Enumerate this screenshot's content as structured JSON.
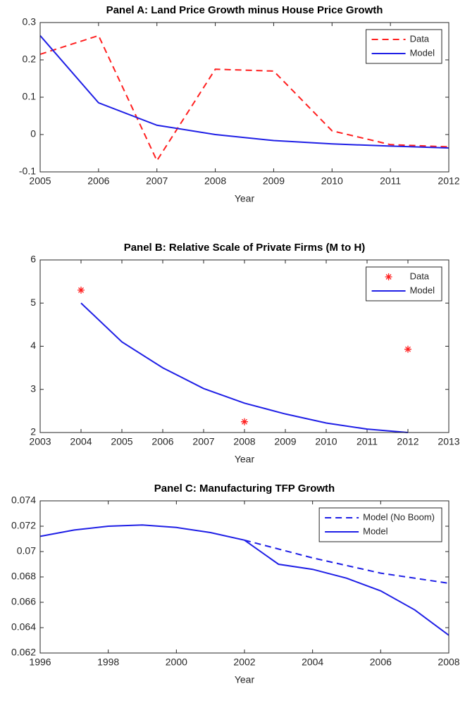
{
  "chart_data": [
    {
      "type": "line",
      "title": "Panel A: Land Price Growth minus House Price Growth",
      "xlabel": "Year",
      "xlim": [
        2005,
        2012
      ],
      "xticks": [
        2005,
        2006,
        2007,
        2008,
        2009,
        2010,
        2011,
        2012
      ],
      "ylim": [
        -0.1,
        0.3
      ],
      "yticks": [
        -0.1,
        0,
        0.1,
        0.2,
        0.3
      ],
      "legend": "upper right",
      "series": [
        {
          "name": "Data",
          "color": "#ff1f1f",
          "linestyle": "dashed",
          "x": [
            2005,
            2006,
            2007,
            2008,
            2009,
            2010,
            2011,
            2012
          ],
          "values": [
            0.215,
            0.265,
            -0.07,
            0.175,
            0.17,
            0.01,
            -0.027,
            -0.033
          ]
        },
        {
          "name": "Model",
          "color": "#1f1fe6",
          "linestyle": "solid",
          "x": [
            2005,
            2006,
            2007,
            2008,
            2009,
            2010,
            2011,
            2012
          ],
          "values": [
            0.265,
            0.085,
            0.025,
            0.0,
            -0.016,
            -0.025,
            -0.031,
            -0.036
          ]
        }
      ]
    },
    {
      "type": "line",
      "title": "Panel B: Relative Scale of Private Firms (M to H)",
      "xlabel": "Year",
      "xlim": [
        2003,
        2013
      ],
      "xticks": [
        2003,
        2004,
        2005,
        2006,
        2007,
        2008,
        2009,
        2010,
        2011,
        2012,
        2013
      ],
      "ylim": [
        2,
        6
      ],
      "yticks": [
        2,
        3,
        4,
        5,
        6
      ],
      "legend": "upper right",
      "series": [
        {
          "name": "Data",
          "color": "#ff1f1f",
          "linestyle": "none",
          "marker": "asterisk",
          "x": [
            2004,
            2008,
            2012
          ],
          "values": [
            5.3,
            2.25,
            3.93
          ]
        },
        {
          "name": "Model",
          "color": "#1f1fe6",
          "linestyle": "solid",
          "x": [
            2004,
            2005,
            2006,
            2007,
            2008,
            2009,
            2010,
            2011,
            2012
          ],
          "values": [
            5.0,
            4.1,
            3.5,
            3.02,
            2.68,
            2.43,
            2.22,
            2.08,
            2.0
          ]
        }
      ]
    },
    {
      "type": "line",
      "title": "Panel C: Manufacturing TFP Growth",
      "xlabel": "Year",
      "xlim": [
        1996,
        2008
      ],
      "xticks": [
        1996,
        1998,
        2000,
        2002,
        2004,
        2006,
        2008
      ],
      "ylim": [
        0.062,
        0.074
      ],
      "yticks": [
        0.062,
        0.064,
        0.066,
        0.068,
        0.07,
        0.072,
        0.074
      ],
      "legend": "upper right",
      "series": [
        {
          "name": "Model (No Boom)",
          "color": "#1f1fe6",
          "linestyle": "dashed",
          "x": [
            2002,
            2003,
            2004,
            2005,
            2006,
            2007,
            2008
          ],
          "values": [
            0.0709,
            0.0702,
            0.0695,
            0.0689,
            0.0683,
            0.0679,
            0.0675
          ]
        },
        {
          "name": "Model",
          "color": "#1f1fe6",
          "linestyle": "solid",
          "x": [
            1996,
            1997,
            1998,
            1999,
            2000,
            2001,
            2002,
            2003,
            2004,
            2005,
            2006,
            2007,
            2008
          ],
          "values": [
            0.0712,
            0.0717,
            0.072,
            0.0721,
            0.0719,
            0.0715,
            0.0709,
            0.069,
            0.0686,
            0.0679,
            0.0669,
            0.0654,
            0.0634
          ]
        }
      ]
    }
  ]
}
